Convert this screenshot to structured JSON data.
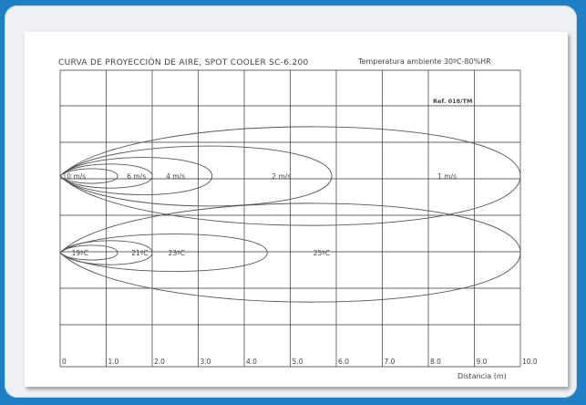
{
  "document": {
    "title": "CURVA DE PROYECCIÓN DE AIRE, SPOT COOLER SC-6.200",
    "ambient": "Temperatura ambiente 30ºC-80%HR",
    "reference": "Ref. 018/TM",
    "x_axis_label": "Distancia (m)",
    "x_ticks": [
      "0",
      "1.0",
      "2.0",
      "3.0",
      "4.0",
      "5.0",
      "6.0",
      "7.0",
      "8.0",
      "9.0",
      "10.0"
    ]
  },
  "velocity_curves": [
    {
      "label": "10 m/s",
      "reach_m": 1.25
    },
    {
      "label": "6 m/s",
      "reach_m": 2.0
    },
    {
      "label": "4 m/s",
      "reach_m": 3.3
    },
    {
      "label": "2 m/s",
      "reach_m": 5.9
    },
    {
      "label": "1 m/s",
      "reach_m": 10.0
    }
  ],
  "temperature_curves": [
    {
      "label": "19ºC",
      "reach_m": 1.25
    },
    {
      "label": "21ºC",
      "reach_m": 2.0
    },
    {
      "label": "23ºC",
      "reach_m": 4.5
    },
    {
      "label": "25ºC",
      "reach_m": 10.0
    }
  ],
  "colors": {
    "background": "#1e7fc4",
    "frame": "#eef0f4",
    "paper": "#ffffff",
    "grid": "#333333",
    "curve": "#555555",
    "text": "#444444"
  }
}
